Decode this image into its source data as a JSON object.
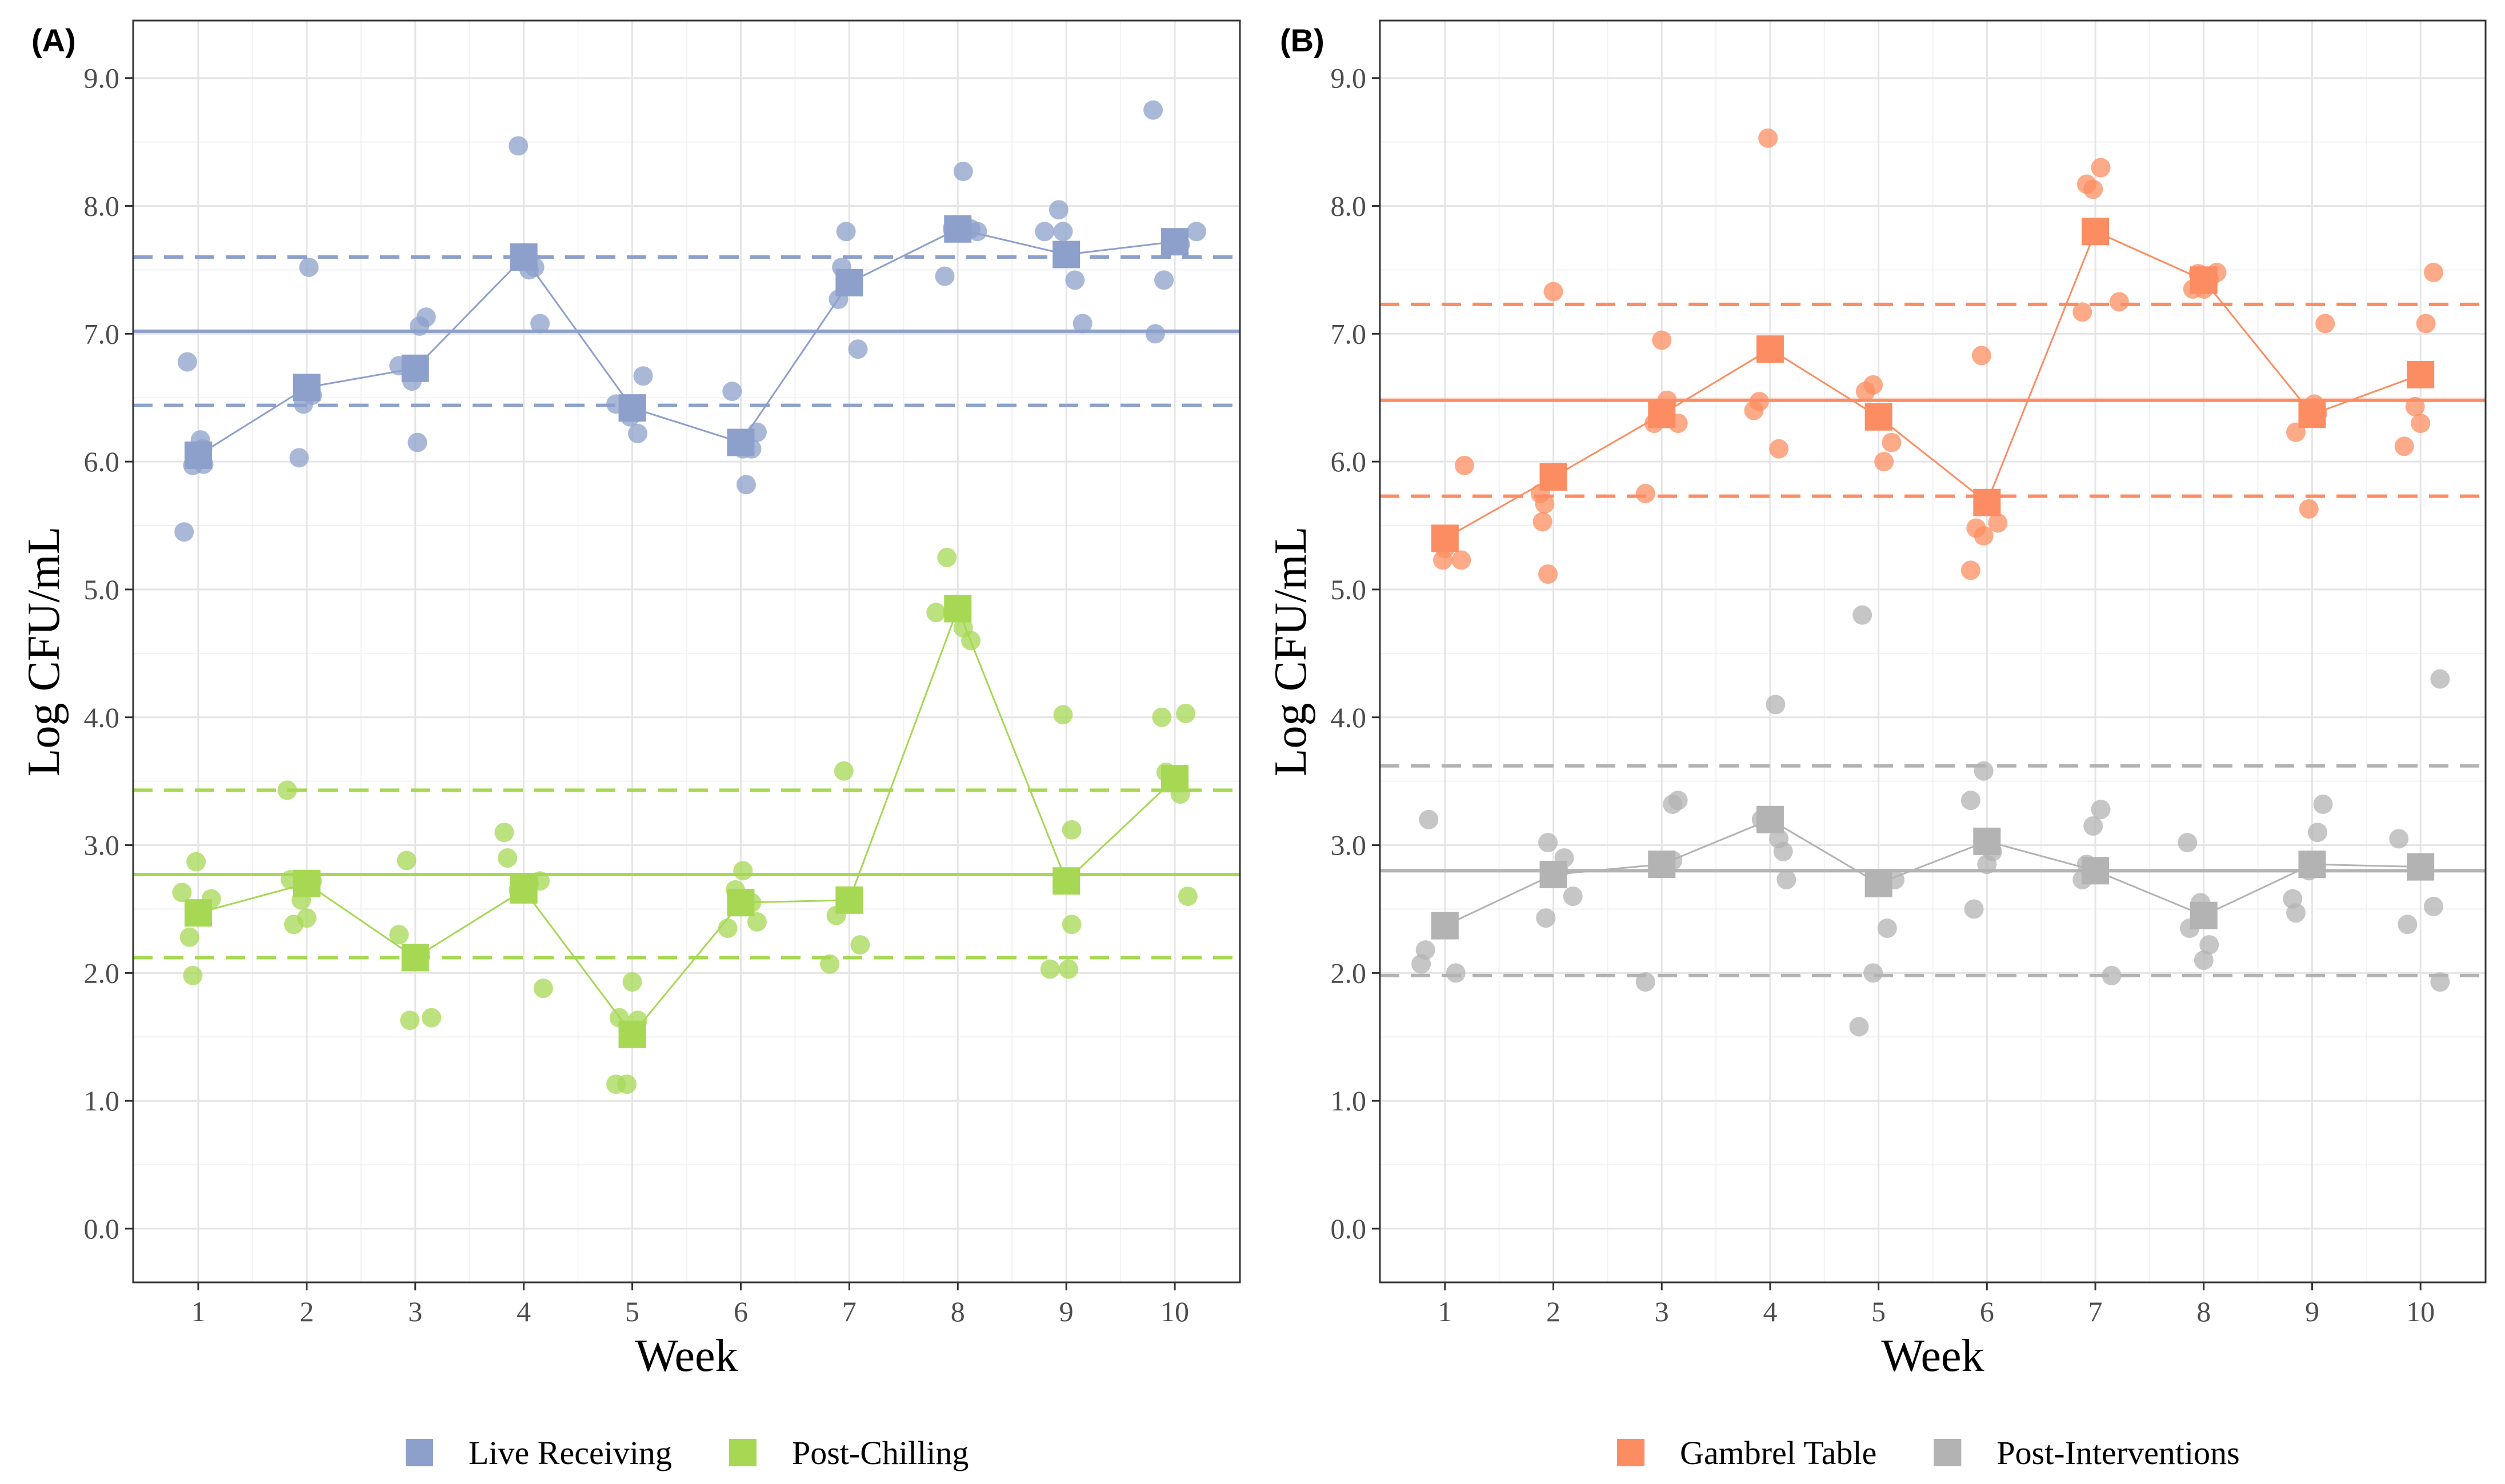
{
  "chart_data": [
    {
      "type": "scatter",
      "panel_label": "(A)",
      "xlabel": "Week",
      "ylabel": "Log CFU/mL",
      "x_ticks": [
        "1",
        "2",
        "3",
        "4",
        "5",
        "6",
        "7",
        "8",
        "9",
        "10"
      ],
      "y_ticks": [
        "0.0",
        "1.0",
        "2.0",
        "3.0",
        "4.0",
        "5.0",
        "6.0",
        "7.0",
        "8.0",
        "9.0"
      ],
      "xlim": [
        0.4,
        10.6
      ],
      "ylim": [
        -0.42,
        9.45
      ],
      "grid": true,
      "legend_position": "bottom",
      "series": [
        {
          "name": "Live Receiving",
          "color": "#8DA0CB",
          "means": [
            6.05,
            6.58,
            6.73,
            7.6,
            6.42,
            6.15,
            7.4,
            7.82,
            7.62,
            7.72
          ],
          "points": [
            [
              0.87,
              5.45
            ],
            [
              0.9,
              6.78
            ],
            [
              0.95,
              5.97
            ],
            [
              1.02,
              6.17
            ],
            [
              1.05,
              5.98
            ],
            [
              1.04,
              6.1
            ],
            [
              1.93,
              6.03
            ],
            [
              1.97,
              6.45
            ],
            [
              2.02,
              7.52
            ],
            [
              2.05,
              6.52
            ],
            [
              2.85,
              6.75
            ],
            [
              2.97,
              6.63
            ],
            [
              3.02,
              6.15
            ],
            [
              3.04,
              7.06
            ],
            [
              3.1,
              7.13
            ],
            [
              3.95,
              8.47
            ],
            [
              4.05,
              7.5
            ],
            [
              4.1,
              7.52
            ],
            [
              4.15,
              7.08
            ],
            [
              4.85,
              6.45
            ],
            [
              4.98,
              6.35
            ],
            [
              5.05,
              6.22
            ],
            [
              5.1,
              6.67
            ],
            [
              5.92,
              6.55
            ],
            [
              6.05,
              5.82
            ],
            [
              6.1,
              6.1
            ],
            [
              6.15,
              6.23
            ],
            [
              6.02,
              6.1
            ],
            [
              6.9,
              7.27
            ],
            [
              6.93,
              7.52
            ],
            [
              6.97,
              7.8
            ],
            [
              7.08,
              6.88
            ],
            [
              7.88,
              7.45
            ],
            [
              7.95,
              7.82
            ],
            [
              8.05,
              8.27
            ],
            [
              8.12,
              7.82
            ],
            [
              8.18,
              7.8
            ],
            [
              8.8,
              7.8
            ],
            [
              8.93,
              7.97
            ],
            [
              8.97,
              7.8
            ],
            [
              9.08,
              7.42
            ],
            [
              9.15,
              7.08
            ],
            [
              9.8,
              8.75
            ],
            [
              9.82,
              7.0
            ],
            [
              9.9,
              7.42
            ],
            [
              10.05,
              7.7
            ],
            [
              10.2,
              7.8
            ]
          ],
          "hline_mean": 7.02,
          "hline_lower": 6.44,
          "hline_upper": 7.6
        },
        {
          "name": "Post-Chilling",
          "color": "#A6D854",
          "means": [
            2.47,
            2.7,
            2.12,
            2.65,
            1.52,
            2.55,
            2.57,
            4.85,
            2.72,
            3.52
          ],
          "points": [
            [
              0.85,
              2.63
            ],
            [
              0.92,
              2.28
            ],
            [
              0.95,
              1.98
            ],
            [
              0.98,
              2.87
            ],
            [
              1.12,
              2.58
            ],
            [
              1.82,
              3.43
            ],
            [
              1.85,
              2.73
            ],
            [
              1.88,
              2.38
            ],
            [
              1.95,
              2.57
            ],
            [
              2.0,
              2.43
            ],
            [
              2.05,
              2.72
            ],
            [
              2.85,
              2.3
            ],
            [
              2.92,
              2.88
            ],
            [
              2.95,
              1.63
            ],
            [
              3.05,
              2.15
            ],
            [
              3.15,
              1.65
            ],
            [
              3.82,
              3.1
            ],
            [
              3.85,
              2.9
            ],
            [
              3.95,
              2.65
            ],
            [
              4.05,
              2.7
            ],
            [
              4.15,
              2.72
            ],
            [
              4.18,
              1.88
            ],
            [
              4.85,
              1.13
            ],
            [
              4.88,
              1.65
            ],
            [
              4.95,
              1.13
            ],
            [
              5.0,
              1.93
            ],
            [
              5.05,
              1.63
            ],
            [
              5.88,
              2.35
            ],
            [
              5.95,
              2.65
            ],
            [
              6.02,
              2.8
            ],
            [
              6.1,
              2.55
            ],
            [
              6.15,
              2.4
            ],
            [
              6.82,
              2.07
            ],
            [
              6.88,
              2.45
            ],
            [
              6.95,
              3.58
            ],
            [
              7.1,
              2.22
            ],
            [
              7.8,
              4.82
            ],
            [
              7.9,
              5.25
            ],
            [
              7.95,
              4.82
            ],
            [
              8.05,
              4.7
            ],
            [
              8.12,
              4.6
            ],
            [
              8.85,
              2.03
            ],
            [
              8.97,
              4.02
            ],
            [
              9.02,
              2.03
            ],
            [
              9.05,
              2.38
            ],
            [
              9.05,
              3.12
            ],
            [
              9.88,
              4.0
            ],
            [
              9.92,
              3.57
            ],
            [
              10.05,
              3.4
            ],
            [
              10.1,
              4.03
            ],
            [
              10.12,
              2.6
            ]
          ],
          "hline_mean": 2.77,
          "hline_lower": 2.12,
          "hline_upper": 3.43
        }
      ]
    },
    {
      "type": "scatter",
      "panel_label": "(B)",
      "xlabel": "Week",
      "ylabel": "Log CFU/mL",
      "x_ticks": [
        "1",
        "2",
        "3",
        "4",
        "5",
        "6",
        "7",
        "8",
        "9",
        "10"
      ],
      "y_ticks": [
        "0.0",
        "1.0",
        "2.0",
        "3.0",
        "4.0",
        "5.0",
        "6.0",
        "7.0",
        "8.0",
        "9.0"
      ],
      "xlim": [
        0.4,
        10.6
      ],
      "ylim": [
        -0.42,
        9.45
      ],
      "grid": true,
      "legend_position": "bottom",
      "series": [
        {
          "name": "Gambrel Table",
          "color": "#FC8D62",
          "means": [
            5.4,
            5.88,
            6.37,
            6.88,
            6.35,
            5.68,
            7.8,
            7.42,
            6.37,
            6.68
          ],
          "points": [
            [
              0.98,
              5.23
            ],
            [
              1.0,
              5.32
            ],
            [
              1.15,
              5.23
            ],
            [
              1.18,
              5.97
            ],
            [
              1.88,
              5.75
            ],
            [
              1.9,
              5.53
            ],
            [
              1.92,
              5.67
            ],
            [
              1.95,
              5.12
            ],
            [
              2.0,
              7.33
            ],
            [
              2.85,
              5.75
            ],
            [
              2.93,
              6.3
            ],
            [
              3.0,
              6.95
            ],
            [
              3.05,
              6.48
            ],
            [
              3.15,
              6.3
            ],
            [
              3.85,
              6.4
            ],
            [
              3.9,
              6.47
            ],
            [
              3.98,
              8.53
            ],
            [
              4.08,
              6.1
            ],
            [
              4.88,
              6.55
            ],
            [
              4.95,
              6.6
            ],
            [
              5.0,
              6.35
            ],
            [
              5.05,
              6.0
            ],
            [
              5.12,
              6.15
            ],
            [
              5.85,
              5.15
            ],
            [
              5.9,
              5.48
            ],
            [
              5.95,
              6.83
            ],
            [
              5.97,
              5.42
            ],
            [
              6.1,
              5.52
            ],
            [
              6.88,
              7.17
            ],
            [
              6.92,
              8.17
            ],
            [
              6.98,
              8.13
            ],
            [
              7.05,
              8.3
            ],
            [
              7.22,
              7.25
            ],
            [
              7.9,
              7.35
            ],
            [
              7.95,
              7.47
            ],
            [
              8.0,
              7.35
            ],
            [
              8.05,
              7.42
            ],
            [
              8.12,
              7.48
            ],
            [
              8.85,
              6.23
            ],
            [
              8.97,
              5.63
            ],
            [
              9.02,
              6.45
            ],
            [
              9.05,
              6.38
            ],
            [
              9.12,
              7.08
            ],
            [
              9.85,
              6.12
            ],
            [
              9.95,
              6.43
            ],
            [
              10.0,
              6.3
            ],
            [
              10.05,
              7.08
            ],
            [
              10.12,
              7.48
            ]
          ],
          "hline_mean": 6.48,
          "hline_lower": 5.73,
          "hline_upper": 7.23
        },
        {
          "name": "Post-Interventions",
          "color": "#B3B3B3",
          "means": [
            2.37,
            2.77,
            2.85,
            3.2,
            2.7,
            3.03,
            2.8,
            2.45,
            2.85,
            2.83
          ],
          "points": [
            [
              0.78,
              2.07
            ],
            [
              0.82,
              2.18
            ],
            [
              0.85,
              3.2
            ],
            [
              1.1,
              2.0
            ],
            [
              1.93,
              2.43
            ],
            [
              1.95,
              3.02
            ],
            [
              2.05,
              2.8
            ],
            [
              2.1,
              2.9
            ],
            [
              2.18,
              2.6
            ],
            [
              2.85,
              1.93
            ],
            [
              3.1,
              3.32
            ],
            [
              3.15,
              3.35
            ],
            [
              3.1,
              2.88
            ],
            [
              3.92,
              3.2
            ],
            [
              4.05,
              4.1
            ],
            [
              4.08,
              3.05
            ],
            [
              4.12,
              2.95
            ],
            [
              4.15,
              2.73
            ],
            [
              4.85,
              4.8
            ],
            [
              4.82,
              1.58
            ],
            [
              4.95,
              2.0
            ],
            [
              5.08,
              2.35
            ],
            [
              5.15,
              2.73
            ],
            [
              5.85,
              3.35
            ],
            [
              5.88,
              2.5
            ],
            [
              5.97,
              3.58
            ],
            [
              6.0,
              2.85
            ],
            [
              6.05,
              2.95
            ],
            [
              6.88,
              2.73
            ],
            [
              6.92,
              2.85
            ],
            [
              6.98,
              3.15
            ],
            [
              7.05,
              3.28
            ],
            [
              7.15,
              1.98
            ],
            [
              7.85,
              3.02
            ],
            [
              7.87,
              2.35
            ],
            [
              7.97,
              2.55
            ],
            [
              8.0,
              2.1
            ],
            [
              8.05,
              2.22
            ],
            [
              8.82,
              2.58
            ],
            [
              8.85,
              2.47
            ],
            [
              8.97,
              2.8
            ],
            [
              9.05,
              3.1
            ],
            [
              9.1,
              3.32
            ],
            [
              9.8,
              3.05
            ],
            [
              9.88,
              2.38
            ],
            [
              10.12,
              2.52
            ],
            [
              10.18,
              4.3
            ],
            [
              10.18,
              1.93
            ]
          ],
          "hline_mean": 2.8,
          "hline_lower": 1.98,
          "hline_upper": 3.62
        }
      ]
    }
  ]
}
